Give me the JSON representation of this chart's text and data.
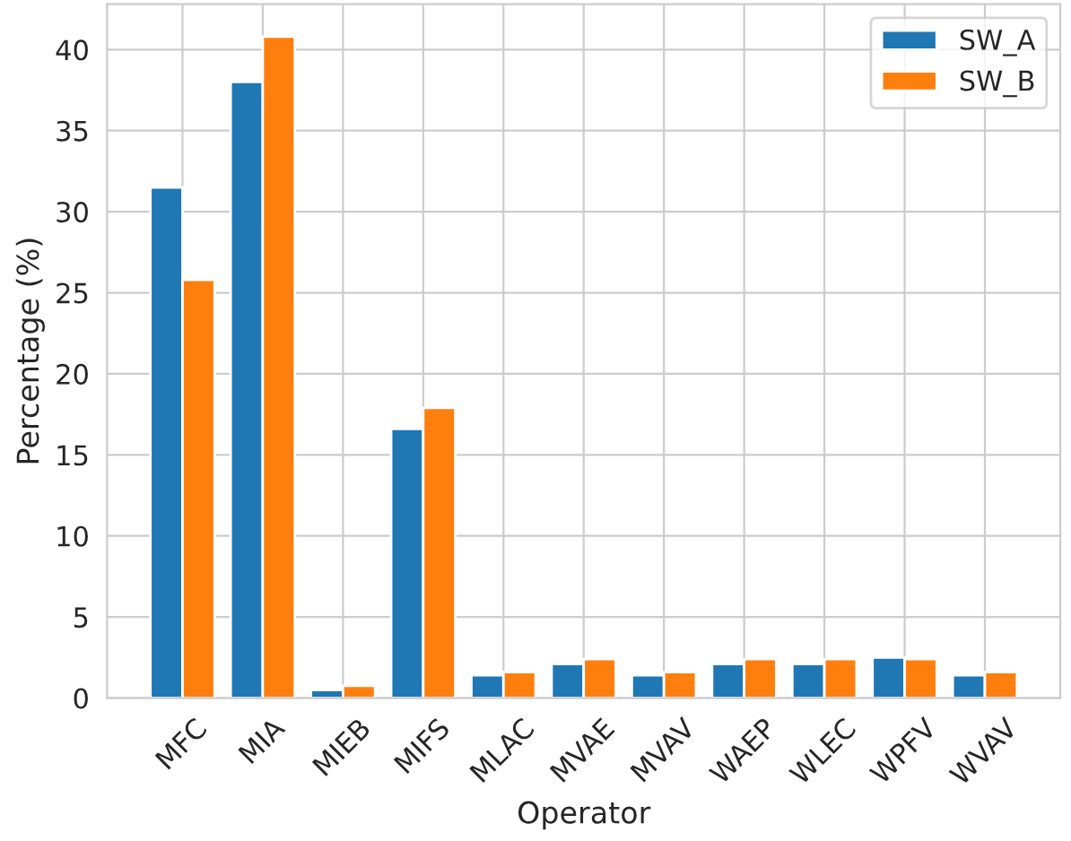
{
  "chart_data": {
    "type": "bar",
    "xlabel": "Operator",
    "ylabel": "Percentage (%)",
    "categories": [
      "MFC",
      "MIA",
      "MIEB",
      "MIFS",
      "MLAC",
      "MVAE",
      "MVAV",
      "WAEP",
      "WLEC",
      "WPFV",
      "WVAV"
    ],
    "series": [
      {
        "name": "SW_A",
        "color": "#1f77b4",
        "values": [
          31.5,
          38.0,
          0.5,
          16.6,
          1.4,
          2.1,
          1.4,
          2.1,
          2.1,
          2.5,
          1.4
        ]
      },
      {
        "name": "SW_B",
        "color": "#ff7f0e",
        "values": [
          25.8,
          40.8,
          0.75,
          17.9,
          1.6,
          2.4,
          1.6,
          2.4,
          2.4,
          2.4,
          1.6
        ]
      }
    ],
    "ylim": [
      0,
      42.8
    ],
    "yticks": [
      0,
      5,
      10,
      15,
      20,
      25,
      30,
      35,
      40
    ],
    "grid": true,
    "legend": "top right"
  }
}
